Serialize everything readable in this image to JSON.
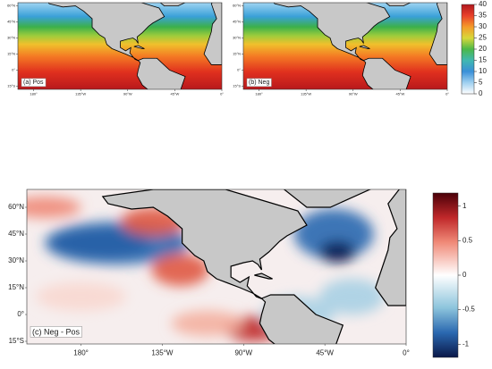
{
  "panels": [
    {
      "label": "(a) Pos",
      "lat_labels": [
        "60°N",
        "45°N",
        "30°N",
        "15°N",
        "0°",
        "15°S"
      ],
      "lon_labels": [
        "180°",
        "135°W",
        "90°W",
        "45°W",
        "0°"
      ]
    },
    {
      "label": "(b) Neg",
      "lat_labels": [
        "60°N",
        "45°N",
        "30°N",
        "15°N",
        "0°",
        "15°S"
      ],
      "lon_labels": [
        "180°",
        "135°W",
        "90°W",
        "45°W",
        "0°"
      ]
    },
    {
      "label": "(c) Neg - Pos",
      "lat_labels": [
        "60°N",
        "45°N",
        "30°N",
        "15°N",
        "0°",
        "15°S"
      ],
      "lon_labels": [
        "180°",
        "135°W",
        "90°W",
        "45°W",
        "0°"
      ]
    }
  ],
  "colorbars": [
    {
      "ticks": [
        0,
        5,
        10,
        15,
        20,
        25,
        30,
        35,
        40
      ]
    },
    {
      "ticks": [
        1,
        0.5,
        0,
        -0.5,
        -1
      ]
    }
  ]
}
